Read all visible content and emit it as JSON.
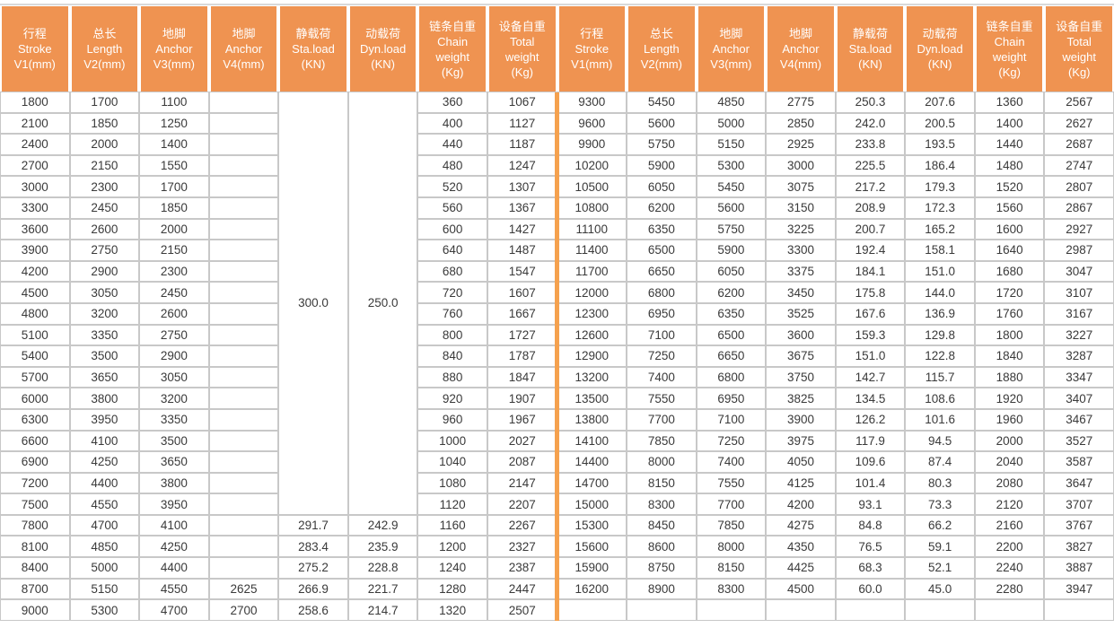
{
  "colors": {
    "header_bg": "#EF9351",
    "header_text": "#FFFFFF",
    "divider_orange": "#F5A14E",
    "grid_line": "#C8C8C8",
    "cell_text": "#3A3A3A"
  },
  "table": {
    "columns": [
      {
        "key": "v1",
        "lines": [
          "行程",
          "Stroke",
          "V1(mm)"
        ]
      },
      {
        "key": "v2",
        "lines": [
          "总长",
          "Length",
          "V2(mm)"
        ]
      },
      {
        "key": "v3",
        "lines": [
          "地脚",
          "Anchor",
          "V3(mm)"
        ]
      },
      {
        "key": "v4",
        "lines": [
          "地脚",
          "Anchor",
          "V4(mm)"
        ]
      },
      {
        "key": "sta",
        "lines": [
          "静载荷",
          "Sta.load",
          "(KN)"
        ]
      },
      {
        "key": "dyn",
        "lines": [
          "动载荷",
          "Dyn.load",
          "(KN)"
        ]
      },
      {
        "key": "chain",
        "lines": [
          "链条自重",
          "Chain",
          "weight",
          "(Kg)"
        ]
      },
      {
        "key": "total",
        "lines": [
          "设备自重",
          "Total",
          "weight",
          "(Kg)"
        ]
      }
    ],
    "merged_span": 20,
    "rows_left": [
      [
        "1800",
        "1700",
        "1100",
        "",
        "300.0",
        "250.0",
        "360",
        "1067"
      ],
      [
        "2100",
        "1850",
        "1250",
        "",
        null,
        null,
        "400",
        "1127"
      ],
      [
        "2400",
        "2000",
        "1400",
        "",
        null,
        null,
        "440",
        "1187"
      ],
      [
        "2700",
        "2150",
        "1550",
        "",
        null,
        null,
        "480",
        "1247"
      ],
      [
        "3000",
        "2300",
        "1700",
        "",
        null,
        null,
        "520",
        "1307"
      ],
      [
        "3300",
        "2450",
        "1850",
        "",
        null,
        null,
        "560",
        "1367"
      ],
      [
        "3600",
        "2600",
        "2000",
        "",
        null,
        null,
        "600",
        "1427"
      ],
      [
        "3900",
        "2750",
        "2150",
        "",
        null,
        null,
        "640",
        "1487"
      ],
      [
        "4200",
        "2900",
        "2300",
        "",
        null,
        null,
        "680",
        "1547"
      ],
      [
        "4500",
        "3050",
        "2450",
        "",
        null,
        null,
        "720",
        "1607"
      ],
      [
        "4800",
        "3200",
        "2600",
        "",
        null,
        null,
        "760",
        "1667"
      ],
      [
        "5100",
        "3350",
        "2750",
        "",
        null,
        null,
        "800",
        "1727"
      ],
      [
        "5400",
        "3500",
        "2900",
        "",
        null,
        null,
        "840",
        "1787"
      ],
      [
        "5700",
        "3650",
        "3050",
        "",
        null,
        null,
        "880",
        "1847"
      ],
      [
        "6000",
        "3800",
        "3200",
        "",
        null,
        null,
        "920",
        "1907"
      ],
      [
        "6300",
        "3950",
        "3350",
        "",
        null,
        null,
        "960",
        "1967"
      ],
      [
        "6600",
        "4100",
        "3500",
        "",
        null,
        null,
        "1000",
        "2027"
      ],
      [
        "6900",
        "4250",
        "3650",
        "",
        null,
        null,
        "1040",
        "2087"
      ],
      [
        "7200",
        "4400",
        "3800",
        "",
        null,
        null,
        "1080",
        "2147"
      ],
      [
        "7500",
        "4550",
        "3950",
        "",
        null,
        null,
        "1120",
        "2207"
      ],
      [
        "7800",
        "4700",
        "4100",
        "",
        "291.7",
        "242.9",
        "1160",
        "2267"
      ],
      [
        "8100",
        "4850",
        "4250",
        "",
        "283.4",
        "235.9",
        "1200",
        "2327"
      ],
      [
        "8400",
        "5000",
        "4400",
        "",
        "275.2",
        "228.8",
        "1240",
        "2387"
      ],
      [
        "8700",
        "5150",
        "4550",
        "2625",
        "266.9",
        "221.7",
        "1280",
        "2447"
      ],
      [
        "9000",
        "5300",
        "4700",
        "2700",
        "258.6",
        "214.7",
        "1320",
        "2507"
      ]
    ],
    "rows_right": [
      [
        "9300",
        "5450",
        "4850",
        "2775",
        "250.3",
        "207.6",
        "1360",
        "2567"
      ],
      [
        "9600",
        "5600",
        "5000",
        "2850",
        "242.0",
        "200.5",
        "1400",
        "2627"
      ],
      [
        "9900",
        "5750",
        "5150",
        "2925",
        "233.8",
        "193.5",
        "1440",
        "2687"
      ],
      [
        "10200",
        "5900",
        "5300",
        "3000",
        "225.5",
        "186.4",
        "1480",
        "2747"
      ],
      [
        "10500",
        "6050",
        "5450",
        "3075",
        "217.2",
        "179.3",
        "1520",
        "2807"
      ],
      [
        "10800",
        "6200",
        "5600",
        "3150",
        "208.9",
        "172.3",
        "1560",
        "2867"
      ],
      [
        "11100",
        "6350",
        "5750",
        "3225",
        "200.7",
        "165.2",
        "1600",
        "2927"
      ],
      [
        "11400",
        "6500",
        "5900",
        "3300",
        "192.4",
        "158.1",
        "1640",
        "2987"
      ],
      [
        "11700",
        "6650",
        "6050",
        "3375",
        "184.1",
        "151.0",
        "1680",
        "3047"
      ],
      [
        "12000",
        "6800",
        "6200",
        "3450",
        "175.8",
        "144.0",
        "1720",
        "3107"
      ],
      [
        "12300",
        "6950",
        "6350",
        "3525",
        "167.6",
        "136.9",
        "1760",
        "3167"
      ],
      [
        "12600",
        "7100",
        "6500",
        "3600",
        "159.3",
        "129.8",
        "1800",
        "3227"
      ],
      [
        "12900",
        "7250",
        "6650",
        "3675",
        "151.0",
        "122.8",
        "1840",
        "3287"
      ],
      [
        "13200",
        "7400",
        "6800",
        "3750",
        "142.7",
        "115.7",
        "1880",
        "3347"
      ],
      [
        "13500",
        "7550",
        "6950",
        "3825",
        "134.5",
        "108.6",
        "1920",
        "3407"
      ],
      [
        "13800",
        "7700",
        "7100",
        "3900",
        "126.2",
        "101.6",
        "1960",
        "3467"
      ],
      [
        "14100",
        "7850",
        "7250",
        "3975",
        "117.9",
        "94.5",
        "2000",
        "3527"
      ],
      [
        "14400",
        "8000",
        "7400",
        "4050",
        "109.6",
        "87.4",
        "2040",
        "3587"
      ],
      [
        "14700",
        "8150",
        "7550",
        "4125",
        "101.4",
        "80.3",
        "2080",
        "3647"
      ],
      [
        "15000",
        "8300",
        "7700",
        "4200",
        "93.1",
        "73.3",
        "2120",
        "3707"
      ],
      [
        "15300",
        "8450",
        "7850",
        "4275",
        "84.8",
        "66.2",
        "2160",
        "3767"
      ],
      [
        "15600",
        "8600",
        "8000",
        "4350",
        "76.5",
        "59.1",
        "2200",
        "3827"
      ],
      [
        "15900",
        "8750",
        "8150",
        "4425",
        "68.3",
        "52.1",
        "2240",
        "3887"
      ],
      [
        "16200",
        "8900",
        "8300",
        "4500",
        "60.0",
        "45.0",
        "2280",
        "3947"
      ],
      [
        "",
        "",
        "",
        "",
        "",
        "",
        "",
        ""
      ]
    ]
  }
}
